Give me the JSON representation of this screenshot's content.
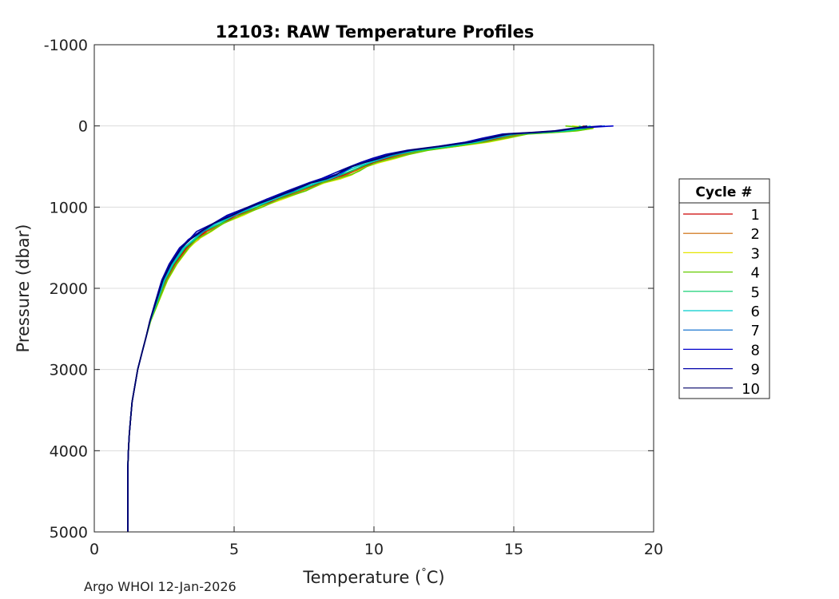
{
  "chart_data": {
    "type": "line",
    "title": "12103: RAW Temperature Profiles",
    "xlabel": "Temperature (°C)",
    "xlabel_main": "Temperature (",
    "xlabel_degree": "°",
    "xlabel_unit": "C)",
    "ylabel": "Pressure (dbar)",
    "xlim": [
      0,
      20
    ],
    "ylim": [
      -1000,
      5000
    ],
    "y_reversed": true,
    "grid": true,
    "xticks": [
      0,
      5,
      10,
      15,
      20
    ],
    "xtick_labels": [
      "0",
      "5",
      "10",
      "15",
      "20"
    ],
    "yticks": [
      -1000,
      0,
      1000,
      2000,
      3000,
      4000,
      5000
    ],
    "ytick_labels": [
      "-1000",
      "0",
      "1000",
      "2000",
      "3000",
      "4000",
      "5000"
    ],
    "legend": {
      "title": "Cycle #",
      "placement": "outside-right",
      "entries": [
        "1",
        "2",
        "3",
        "4",
        "5",
        "6",
        "7",
        "8",
        "9",
        "10"
      ]
    },
    "base_profile": {
      "pressure": [
        0,
        30,
        60,
        80,
        100,
        150,
        200,
        250,
        300,
        350,
        400,
        450,
        500,
        550,
        600,
        650,
        700,
        800,
        900,
        1000,
        1100,
        1200,
        1300,
        1400,
        1500,
        1600,
        1700,
        1800,
        1900,
        2000,
        2200,
        2400,
        2600,
        2800,
        3000,
        3200,
        3400,
        3600,
        3800,
        4000,
        4200,
        4500,
        5000
      ],
      "temperature": [
        17.5,
        17.4,
        16.8,
        16.0,
        15.0,
        14.3,
        13.6,
        12.6,
        11.5,
        10.8,
        10.3,
        9.8,
        9.4,
        9.1,
        8.8,
        8.4,
        7.9,
        7.2,
        6.4,
        5.7,
        5.0,
        4.4,
        3.9,
        3.5,
        3.2,
        3.0,
        2.8,
        2.65,
        2.5,
        2.4,
        2.2,
        2.0,
        1.85,
        1.7,
        1.55,
        1.45,
        1.35,
        1.3,
        1.25,
        1.22,
        1.2,
        1.2,
        1.2
      ]
    },
    "series": [
      {
        "name": "1",
        "color": "#cc0000",
        "temp_offset": 0.1,
        "surface_temperature": 17.5
      },
      {
        "name": "2",
        "color": "#cc6600",
        "temp_offset": 0.15,
        "surface_temperature": 17.4
      },
      {
        "name": "3",
        "color": "#e6e600",
        "temp_offset": 0.2,
        "surface_temperature": 17.1
      },
      {
        "name": "4",
        "color": "#66cc00",
        "temp_offset": 0.18,
        "surface_temperature": 16.9
      },
      {
        "name": "5",
        "color": "#00cc66",
        "temp_offset": 0.05,
        "surface_temperature": 17.3
      },
      {
        "name": "6",
        "color": "#00cccc",
        "temp_offset": 0.0,
        "surface_temperature": 17.7
      },
      {
        "name": "7",
        "color": "#0066cc",
        "temp_offset": -0.05,
        "surface_temperature": 18.3
      },
      {
        "name": "8",
        "color": "#0000cc",
        "temp_offset": -0.1,
        "surface_temperature": 18.6
      },
      {
        "name": "9",
        "color": "#0000aa",
        "temp_offset": -0.15,
        "surface_temperature": 18.1
      },
      {
        "name": "10",
        "color": "#000066",
        "temp_offset": -0.08,
        "surface_temperature": 17.6
      }
    ]
  },
  "footer": "Argo WHOI 12-Jan-2026"
}
